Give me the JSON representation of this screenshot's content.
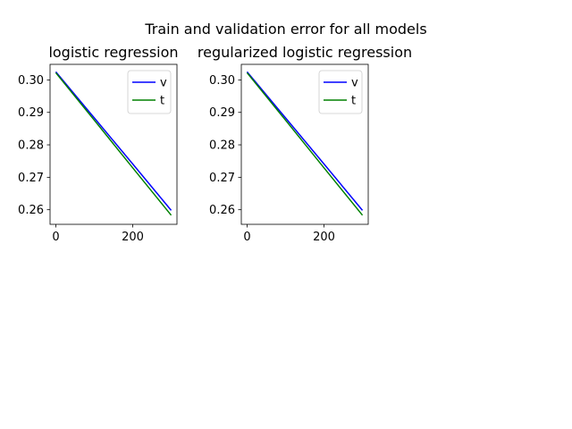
{
  "figure": {
    "suptitle": "Train and validation error for all models"
  },
  "chart_data": [
    {
      "type": "line",
      "title": "logistic regression",
      "xlabel": "",
      "ylabel": "",
      "xlim": [
        -15,
        315
      ],
      "ylim": [
        0.2555,
        0.3048
      ],
      "xticks": [
        0,
        200
      ],
      "xtick_labels": [
        "0",
        "200"
      ],
      "yticks": [
        0.26,
        0.27,
        0.28,
        0.29,
        0.3
      ],
      "ytick_labels": [
        "0.26",
        "0.27",
        "0.28",
        "0.29",
        "0.30"
      ],
      "grid": false,
      "legend": "upper right",
      "series": [
        {
          "name": "v",
          "color": "#0000ff",
          "x": [
            0,
            100,
            200,
            300
          ],
          "y": [
            0.3025,
            0.2883,
            0.2741,
            0.2598
          ]
        },
        {
          "name": "t",
          "color": "#008000",
          "x": [
            0,
            100,
            200,
            300
          ],
          "y": [
            0.3022,
            0.2876,
            0.2729,
            0.2583
          ]
        }
      ]
    },
    {
      "type": "line",
      "title": "regularized logistic regression",
      "xlabel": "",
      "ylabel": "",
      "xlim": [
        -15,
        315
      ],
      "ylim": [
        0.2555,
        0.3048
      ],
      "xticks": [
        0,
        200
      ],
      "xtick_labels": [
        "0",
        "200"
      ],
      "yticks": [
        0.26,
        0.27,
        0.28,
        0.29,
        0.3
      ],
      "ytick_labels": [
        "0.26",
        "0.27",
        "0.28",
        "0.29",
        "0.30"
      ],
      "grid": false,
      "legend": "upper right",
      "series": [
        {
          "name": "v",
          "color": "#0000ff",
          "x": [
            0,
            100,
            200,
            300
          ],
          "y": [
            0.3025,
            0.2883,
            0.2741,
            0.2598
          ]
        },
        {
          "name": "t",
          "color": "#008000",
          "x": [
            0,
            100,
            200,
            300
          ],
          "y": [
            0.3022,
            0.2876,
            0.2729,
            0.2583
          ]
        }
      ]
    }
  ]
}
